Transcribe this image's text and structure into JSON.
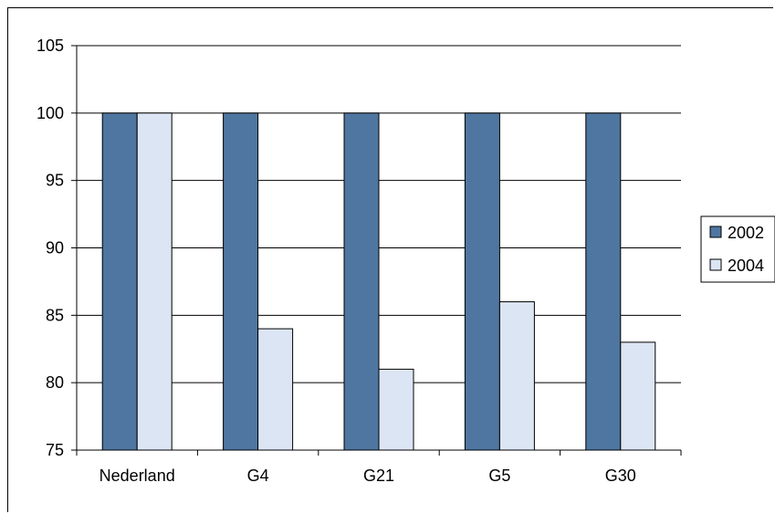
{
  "chart_data": {
    "type": "bar",
    "categories": [
      "Nederland",
      "G4",
      "G21",
      "G5",
      "G30"
    ],
    "series": [
      {
        "name": "2002",
        "values": [
          100,
          100,
          100,
          100,
          100
        ],
        "color": "#4e76a0"
      },
      {
        "name": "2004",
        "values": [
          100,
          84,
          81,
          86,
          83
        ],
        "color": "#dce5f3"
      }
    ],
    "ylim": [
      75,
      105
    ],
    "yticks": [
      75,
      80,
      85,
      90,
      95,
      100,
      105
    ],
    "grid": true,
    "legend_position": "right"
  }
}
